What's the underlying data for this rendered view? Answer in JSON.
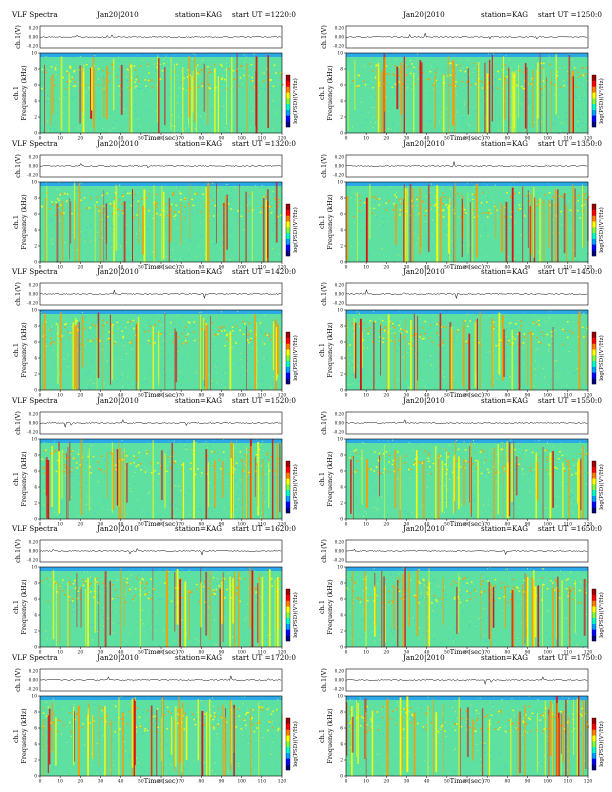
{
  "colors": {
    "background_band": "#2aa8e8",
    "spectrum_base": "#5ee0a0",
    "bursts": [
      "#ffff00",
      "#ff9900",
      "#dd1111"
    ],
    "colorbar": [
      "#00007f",
      "#0000ff",
      "#00a0ff",
      "#00ffcc",
      "#80ff40",
      "#ffff00",
      "#ff8000",
      "#ff0000",
      "#a00000"
    ]
  },
  "chart_data": [
    {
      "type": "heatmap",
      "title": "VLF Spectra",
      "date": "Jan20|2010",
      "station": "station=KAG",
      "start": "start UT =1220:0",
      "ch_label": "ch.1(V)",
      "ylabel": "Frequency (kHz)",
      "y_channel_label": "ch.1",
      "xlabel": "Time (sec)",
      "colorbar_label": "log(PSD)(V²/Hz)",
      "x_ticks": [
        "0",
        "10",
        "20",
        "30",
        "40",
        "50",
        "60",
        "70",
        "80",
        "90",
        "100",
        "110",
        "120"
      ],
      "y_ticks": [
        "0",
        "2",
        "4",
        "6",
        "8",
        "10"
      ],
      "ch_ticks": [
        "0.20",
        "0.00",
        "-0.20"
      ],
      "xlim": [
        0,
        120
      ],
      "ylim": [
        0,
        10
      ]
    },
    {
      "type": "heatmap",
      "title": "",
      "date": "Jan20|2010",
      "station": "station=KAG",
      "start": "start UT =1250:0",
      "ch_label": "ch.1(V)",
      "ylabel": "Frequency (kHz)",
      "y_channel_label": "ch.1",
      "xlabel": "Time (sec)",
      "colorbar_label": "log(PSD)(V²/Hz)",
      "x_ticks": [
        "0",
        "10",
        "20",
        "30",
        "40",
        "50",
        "60",
        "70",
        "80",
        "90",
        "100",
        "110",
        "120"
      ],
      "y_ticks": [
        "0",
        "2",
        "4",
        "6",
        "8",
        "10"
      ],
      "ch_ticks": [
        "0.20",
        "0.00",
        "-0.20"
      ],
      "xlim": [
        0,
        120
      ],
      "ylim": [
        0,
        10
      ]
    },
    {
      "type": "heatmap",
      "title": "VLF Spectra",
      "date": "Jan20|2010",
      "station": "station=KAG",
      "start": "start UT =1320:0",
      "ch_label": "ch.1(V)",
      "ylabel": "Frequency (kHz)",
      "y_channel_label": "ch.1",
      "xlabel": "Time (sec)",
      "colorbar_label": "log(PSD)(V²/Hz)",
      "x_ticks": [
        "0",
        "10",
        "20",
        "30",
        "40",
        "50",
        "60",
        "70",
        "80",
        "90",
        "100",
        "110",
        "120"
      ],
      "y_ticks": [
        "0",
        "2",
        "4",
        "6",
        "8",
        "10"
      ],
      "ch_ticks": [
        "0.20",
        "0.00",
        "-0.20"
      ],
      "xlim": [
        0,
        120
      ],
      "ylim": [
        0,
        10
      ]
    },
    {
      "type": "heatmap",
      "title": "",
      "date": "Jan20|2010",
      "station": "station=KAG",
      "start": "start UT =1350:0",
      "ch_label": "ch.1(V)",
      "ylabel": "Frequency (kHz)",
      "y_channel_label": "ch.1",
      "xlabel": "Time (sec)",
      "colorbar_label": "log(PSD)(V²/Hz)",
      "x_ticks": [
        "0",
        "10",
        "20",
        "30",
        "40",
        "50",
        "60",
        "70",
        "80",
        "90",
        "100",
        "110",
        "120"
      ],
      "y_ticks": [
        "0",
        "2",
        "4",
        "6",
        "8",
        "10"
      ],
      "ch_ticks": [
        "0.20",
        "0.00",
        "-0.20"
      ],
      "xlim": [
        0,
        120
      ],
      "ylim": [
        0,
        10
      ]
    },
    {
      "type": "heatmap",
      "title": "VLF Spectra",
      "date": "Jan20|2010",
      "station": "station=KAG",
      "start": "start UT =1420:0",
      "ch_label": "ch.1(V)",
      "ylabel": "Frequency (kHz)",
      "y_channel_label": "ch.1",
      "xlabel": "Time (sec)",
      "colorbar_label": "log(PSD)(V²/Hz)",
      "x_ticks": [
        "0",
        "10",
        "20",
        "30",
        "40",
        "50",
        "60",
        "70",
        "80",
        "90",
        "100",
        "110",
        "120"
      ],
      "y_ticks": [
        "0",
        "2",
        "4",
        "6",
        "8",
        "10"
      ],
      "ch_ticks": [
        "0.20",
        "0.00",
        "-0.20"
      ],
      "xlim": [
        0,
        120
      ],
      "ylim": [
        0,
        10
      ]
    },
    {
      "type": "heatmap",
      "title": "",
      "date": "Jan20|2010",
      "station": "station=KAG",
      "start": "start UT =1450:0",
      "ch_label": "ch.1(V)",
      "ylabel": "Frequency (kHz)",
      "y_channel_label": "ch.1",
      "xlabel": "Time (sec)",
      "colorbar_label": "log(PSD)(V²/Hz)",
      "x_ticks": [
        "0",
        "10",
        "20",
        "30",
        "40",
        "50",
        "60",
        "70",
        "80",
        "90",
        "100",
        "110",
        "120"
      ],
      "y_ticks": [
        "0",
        "2",
        "4",
        "6",
        "8",
        "10"
      ],
      "ch_ticks": [
        "0.20",
        "0.00",
        "-0.20"
      ],
      "xlim": [
        0,
        120
      ],
      "ylim": [
        0,
        10
      ]
    },
    {
      "type": "heatmap",
      "title": "VLF Spectra",
      "date": "Jan20|2010",
      "station": "station=KAG",
      "start": "start UT =1520:0",
      "ch_label": "ch.1(V)",
      "ylabel": "Frequency (kHz)",
      "y_channel_label": "ch.1",
      "xlabel": "Time (sec)",
      "colorbar_label": "log(PSD)(V²/Hz)",
      "x_ticks": [
        "0",
        "10",
        "20",
        "30",
        "40",
        "50",
        "60",
        "70",
        "80",
        "90",
        "100",
        "110",
        "120"
      ],
      "y_ticks": [
        "0",
        "2",
        "4",
        "6",
        "8",
        "10"
      ],
      "ch_ticks": [
        "0.20",
        "0.00",
        "-0.20"
      ],
      "xlim": [
        0,
        120
      ],
      "ylim": [
        0,
        10
      ]
    },
    {
      "type": "heatmap",
      "title": "",
      "date": "Jan20|2010",
      "station": "station=KAG",
      "start": "start UT =1550:0",
      "ch_label": "ch.1(V)",
      "ylabel": "Frequency (kHz)",
      "y_channel_label": "ch.1",
      "xlabel": "Time (sec)",
      "colorbar_label": "log(PSD)(V²/Hz)",
      "x_ticks": [
        "0",
        "10",
        "20",
        "30",
        "40",
        "50",
        "60",
        "70",
        "80",
        "90",
        "100",
        "110",
        "120"
      ],
      "y_ticks": [
        "0",
        "2",
        "4",
        "6",
        "8",
        "10"
      ],
      "ch_ticks": [
        "0.20",
        "0.00",
        "-0.20"
      ],
      "xlim": [
        0,
        120
      ],
      "ylim": [
        0,
        10
      ]
    },
    {
      "type": "heatmap",
      "title": "VLF Spectra",
      "date": "Jan20|2010",
      "station": "station=KAG",
      "start": "start UT =1620:0",
      "ch_label": "ch.1(V)",
      "ylabel": "Frequency (kHz)",
      "y_channel_label": "ch.1",
      "xlabel": "Time (sec)",
      "colorbar_label": "log(PSD)(V²/Hz)",
      "x_ticks": [
        "0",
        "10",
        "20",
        "30",
        "40",
        "50",
        "60",
        "70",
        "80",
        "90",
        "100",
        "110",
        "120"
      ],
      "y_ticks": [
        "0",
        "2",
        "4",
        "6",
        "8",
        "10"
      ],
      "ch_ticks": [
        "0.20",
        "0.00",
        "-0.20"
      ],
      "xlim": [
        0,
        120
      ],
      "ylim": [
        0,
        10
      ]
    },
    {
      "type": "heatmap",
      "title": "",
      "date": "Jan20|2010",
      "station": "station=KAG",
      "start": "start UT =1650:0",
      "ch_label": "ch.1(V)",
      "ylabel": "Frequency (kHz)",
      "y_channel_label": "ch.1",
      "xlabel": "Time (sec)",
      "colorbar_label": "log(PSD)(V²/Hz)",
      "x_ticks": [
        "0",
        "10",
        "20",
        "30",
        "40",
        "50",
        "60",
        "70",
        "80",
        "90",
        "100",
        "110",
        "120"
      ],
      "y_ticks": [
        "0",
        "2",
        "4",
        "6",
        "8",
        "10"
      ],
      "ch_ticks": [
        "0.20",
        "0.00",
        "-0.20"
      ],
      "xlim": [
        0,
        120
      ],
      "ylim": [
        0,
        10
      ]
    },
    {
      "type": "heatmap",
      "title": "VLF Spectra",
      "date": "Jan20|2010",
      "station": "station=KAG",
      "start": "start UT =1720:0",
      "ch_label": "ch.1(V)",
      "ylabel": "Frequency (kHz)",
      "y_channel_label": "ch.1",
      "xlabel": "Time (sec)",
      "colorbar_label": "log(PSD)(V²/Hz)",
      "x_ticks": [
        "0",
        "10",
        "20",
        "30",
        "40",
        "50",
        "60",
        "70",
        "80",
        "90",
        "100",
        "110",
        "120"
      ],
      "y_ticks": [
        "0",
        "2",
        "4",
        "6",
        "8",
        "10"
      ],
      "ch_ticks": [
        "0.20",
        "0.00",
        "-0.20"
      ],
      "xlim": [
        0,
        120
      ],
      "ylim": [
        0,
        10
      ]
    },
    {
      "type": "heatmap",
      "title": "",
      "date": "Jan20|2010",
      "station": "station=KAG",
      "start": "start UT =1750:0",
      "ch_label": "ch.1(V)",
      "ylabel": "Frequency (kHz)",
      "y_channel_label": "ch.1",
      "xlabel": "Time (sec)",
      "colorbar_label": "log(PSD)(V²/Hz)",
      "x_ticks": [
        "0",
        "10",
        "20",
        "30",
        "40",
        "50",
        "60",
        "70",
        "80",
        "90",
        "100",
        "110",
        "120"
      ],
      "y_ticks": [
        "0",
        "2",
        "4",
        "6",
        "8",
        "10"
      ],
      "ch_ticks": [
        "0.20",
        "0.00",
        "-0.20"
      ],
      "xlim": [
        0,
        120
      ],
      "ylim": [
        0,
        10
      ]
    }
  ]
}
